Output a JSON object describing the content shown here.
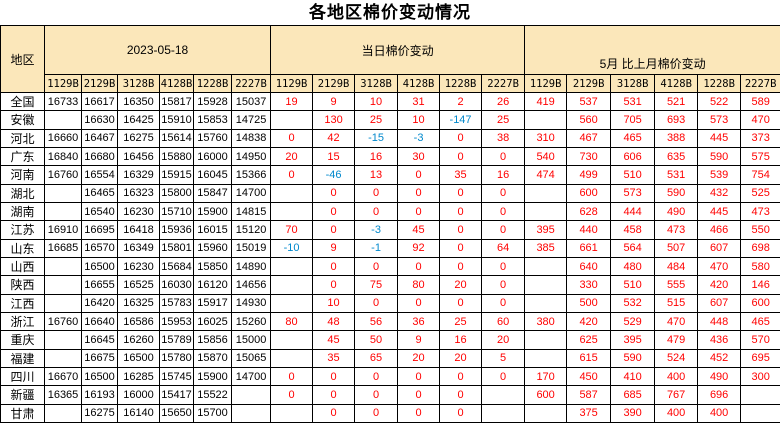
{
  "title": "各地区棉价变动情况",
  "colors": {
    "header_bg": "#FBE7BA",
    "grid": "#000000",
    "title_text": "#000000",
    "positive_value": "#FF0000",
    "negative_value": "#0088CC"
  },
  "chart_data": {
    "type": "table",
    "title": "各地区棉价变动情况",
    "region_header": "地区",
    "groups": [
      {
        "label": "2023-05-18",
        "columns": [
          "1129B",
          "2129B",
          "3128B",
          "4128B",
          "1228B",
          "2227B"
        ]
      },
      {
        "label": "当日棉价变动",
        "columns": [
          "1129B",
          "2129B",
          "3128B",
          "4128B",
          "1228B",
          "2227B"
        ]
      },
      {
        "label": "5月 比上月棉价变动",
        "columns": [
          "1129B",
          "2129B",
          "3128B",
          "4128B",
          "1228B",
          "2227B"
        ]
      }
    ],
    "rows": [
      {
        "region": "全国",
        "prices": [
          "16733",
          "16617",
          "16350",
          "15817",
          "15928",
          "15037"
        ],
        "daily_change": [
          "19",
          "9",
          "10",
          "31",
          "2",
          "26"
        ],
        "monthly_change": [
          "419",
          "537",
          "531",
          "521",
          "522",
          "589"
        ]
      },
      {
        "region": "安徽",
        "prices": [
          "",
          "16630",
          "16425",
          "15910",
          "15853",
          "14725"
        ],
        "daily_change": [
          "",
          "130",
          "25",
          "10",
          "-147",
          "25"
        ],
        "monthly_change": [
          "",
          "560",
          "705",
          "693",
          "573",
          "470"
        ]
      },
      {
        "region": "河北",
        "prices": [
          "16660",
          "16467",
          "16275",
          "15614",
          "15760",
          "14838"
        ],
        "daily_change": [
          "0",
          "42",
          "-15",
          "-3",
          "0",
          "38"
        ],
        "monthly_change": [
          "310",
          "467",
          "465",
          "388",
          "445",
          "373"
        ]
      },
      {
        "region": "广东",
        "prices": [
          "16840",
          "16680",
          "16456",
          "15880",
          "16000",
          "14950"
        ],
        "daily_change": [
          "20",
          "15",
          "16",
          "30",
          "0",
          "0"
        ],
        "monthly_change": [
          "540",
          "730",
          "606",
          "635",
          "590",
          "575"
        ]
      },
      {
        "region": "河南",
        "prices": [
          "16760",
          "16554",
          "16329",
          "15915",
          "16045",
          "15366"
        ],
        "daily_change": [
          "0",
          "-46",
          "13",
          "0",
          "35",
          "16"
        ],
        "monthly_change": [
          "474",
          "499",
          "510",
          "531",
          "539",
          "754"
        ]
      },
      {
        "region": "湖北",
        "prices": [
          "",
          "16465",
          "16323",
          "15800",
          "15847",
          "14700"
        ],
        "daily_change": [
          "",
          "0",
          "0",
          "0",
          "0",
          "0"
        ],
        "monthly_change": [
          "",
          "600",
          "573",
          "590",
          "432",
          "525"
        ]
      },
      {
        "region": "湖南",
        "prices": [
          "",
          "16540",
          "16230",
          "15710",
          "15900",
          "14815"
        ],
        "daily_change": [
          "",
          "0",
          "0",
          "0",
          "0",
          "0"
        ],
        "monthly_change": [
          "",
          "628",
          "444",
          "490",
          "445",
          "473"
        ]
      },
      {
        "region": "江苏",
        "prices": [
          "16910",
          "16695",
          "16418",
          "15936",
          "16015",
          "15120"
        ],
        "daily_change": [
          "70",
          "0",
          "-3",
          "45",
          "0",
          "0"
        ],
        "monthly_change": [
          "395",
          "440",
          "458",
          "473",
          "466",
          "550"
        ]
      },
      {
        "region": "山东",
        "prices": [
          "16685",
          "16570",
          "16349",
          "15801",
          "15960",
          "15019"
        ],
        "daily_change": [
          "-10",
          "9",
          "-1",
          "92",
          "0",
          "64"
        ],
        "monthly_change": [
          "385",
          "661",
          "564",
          "507",
          "607",
          "698"
        ]
      },
      {
        "region": "山西",
        "prices": [
          "",
          "16500",
          "16230",
          "15684",
          "15850",
          "14890"
        ],
        "daily_change": [
          "",
          "0",
          "0",
          "0",
          "0",
          "0"
        ],
        "monthly_change": [
          "",
          "640",
          "480",
          "484",
          "470",
          "580"
        ]
      },
      {
        "region": "陕西",
        "prices": [
          "",
          "16655",
          "16525",
          "16030",
          "16120",
          "14656"
        ],
        "daily_change": [
          "",
          "0",
          "75",
          "80",
          "20",
          "0"
        ],
        "monthly_change": [
          "",
          "330",
          "510",
          "555",
          "420",
          "146"
        ]
      },
      {
        "region": "江西",
        "prices": [
          "",
          "16420",
          "16325",
          "15783",
          "15917",
          "14930"
        ],
        "daily_change": [
          "",
          "10",
          "0",
          "0",
          "0",
          "0"
        ],
        "monthly_change": [
          "",
          "500",
          "532",
          "515",
          "607",
          "600"
        ]
      },
      {
        "region": "浙江",
        "prices": [
          "16760",
          "16640",
          "16586",
          "15953",
          "16025",
          "15260"
        ],
        "daily_change": [
          "80",
          "48",
          "56",
          "36",
          "25",
          "60"
        ],
        "monthly_change": [
          "380",
          "420",
          "529",
          "470",
          "448",
          "465"
        ]
      },
      {
        "region": "重庆",
        "prices": [
          "",
          "16645",
          "16260",
          "15789",
          "15856",
          "15000"
        ],
        "daily_change": [
          "",
          "45",
          "50",
          "9",
          "16",
          "20"
        ],
        "monthly_change": [
          "",
          "625",
          "395",
          "479",
          "436",
          "570"
        ]
      },
      {
        "region": "福建",
        "prices": [
          "",
          "16675",
          "16500",
          "15780",
          "15870",
          "15065"
        ],
        "daily_change": [
          "",
          "35",
          "65",
          "20",
          "20",
          "5"
        ],
        "monthly_change": [
          "",
          "615",
          "590",
          "524",
          "452",
          "695"
        ]
      },
      {
        "region": "四川",
        "prices": [
          "16670",
          "16500",
          "16285",
          "15745",
          "15900",
          "14700"
        ],
        "daily_change": [
          "0",
          "0",
          "0",
          "0",
          "0",
          "0"
        ],
        "monthly_change": [
          "170",
          "450",
          "410",
          "400",
          "490",
          "300"
        ]
      },
      {
        "region": "新疆",
        "prices": [
          "16365",
          "16193",
          "16000",
          "15417",
          "15522",
          ""
        ],
        "daily_change": [
          "0",
          "0",
          "0",
          "0",
          "0",
          ""
        ],
        "monthly_change": [
          "600",
          "587",
          "685",
          "767",
          "696",
          ""
        ]
      },
      {
        "region": "甘肃",
        "prices": [
          "",
          "16275",
          "16140",
          "15650",
          "15700",
          ""
        ],
        "daily_change": [
          "",
          "0",
          "0",
          "0",
          "0",
          ""
        ],
        "monthly_change": [
          "",
          "375",
          "390",
          "400",
          "400",
          ""
        ]
      }
    ]
  }
}
